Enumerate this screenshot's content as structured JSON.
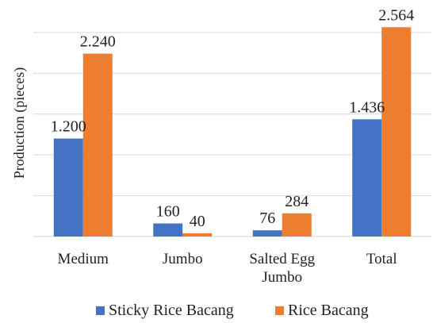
{
  "chart_data": {
    "type": "bar",
    "title": "",
    "xlabel": "",
    "ylabel": "Production (pieces)",
    "categories": [
      [
        "Medium"
      ],
      [
        "Jumbo"
      ],
      [
        "Salted Egg",
        "Jumbo"
      ],
      [
        "Total"
      ]
    ],
    "series": [
      {
        "name": "Sticky Rice Bacang",
        "color": "#4472C4",
        "values": [
          1200,
          160,
          76,
          1436
        ],
        "labels": [
          "1.200",
          "160",
          "76",
          "1.436"
        ]
      },
      {
        "name": "Rice Bacang",
        "color": "#ED7D31",
        "values": [
          2240,
          40,
          284,
          2564
        ],
        "labels": [
          "2.240",
          "40",
          "284",
          "2.564"
        ]
      }
    ],
    "ylim": [
      0,
      2800
    ],
    "grid": true,
    "legend": "bottom"
  }
}
